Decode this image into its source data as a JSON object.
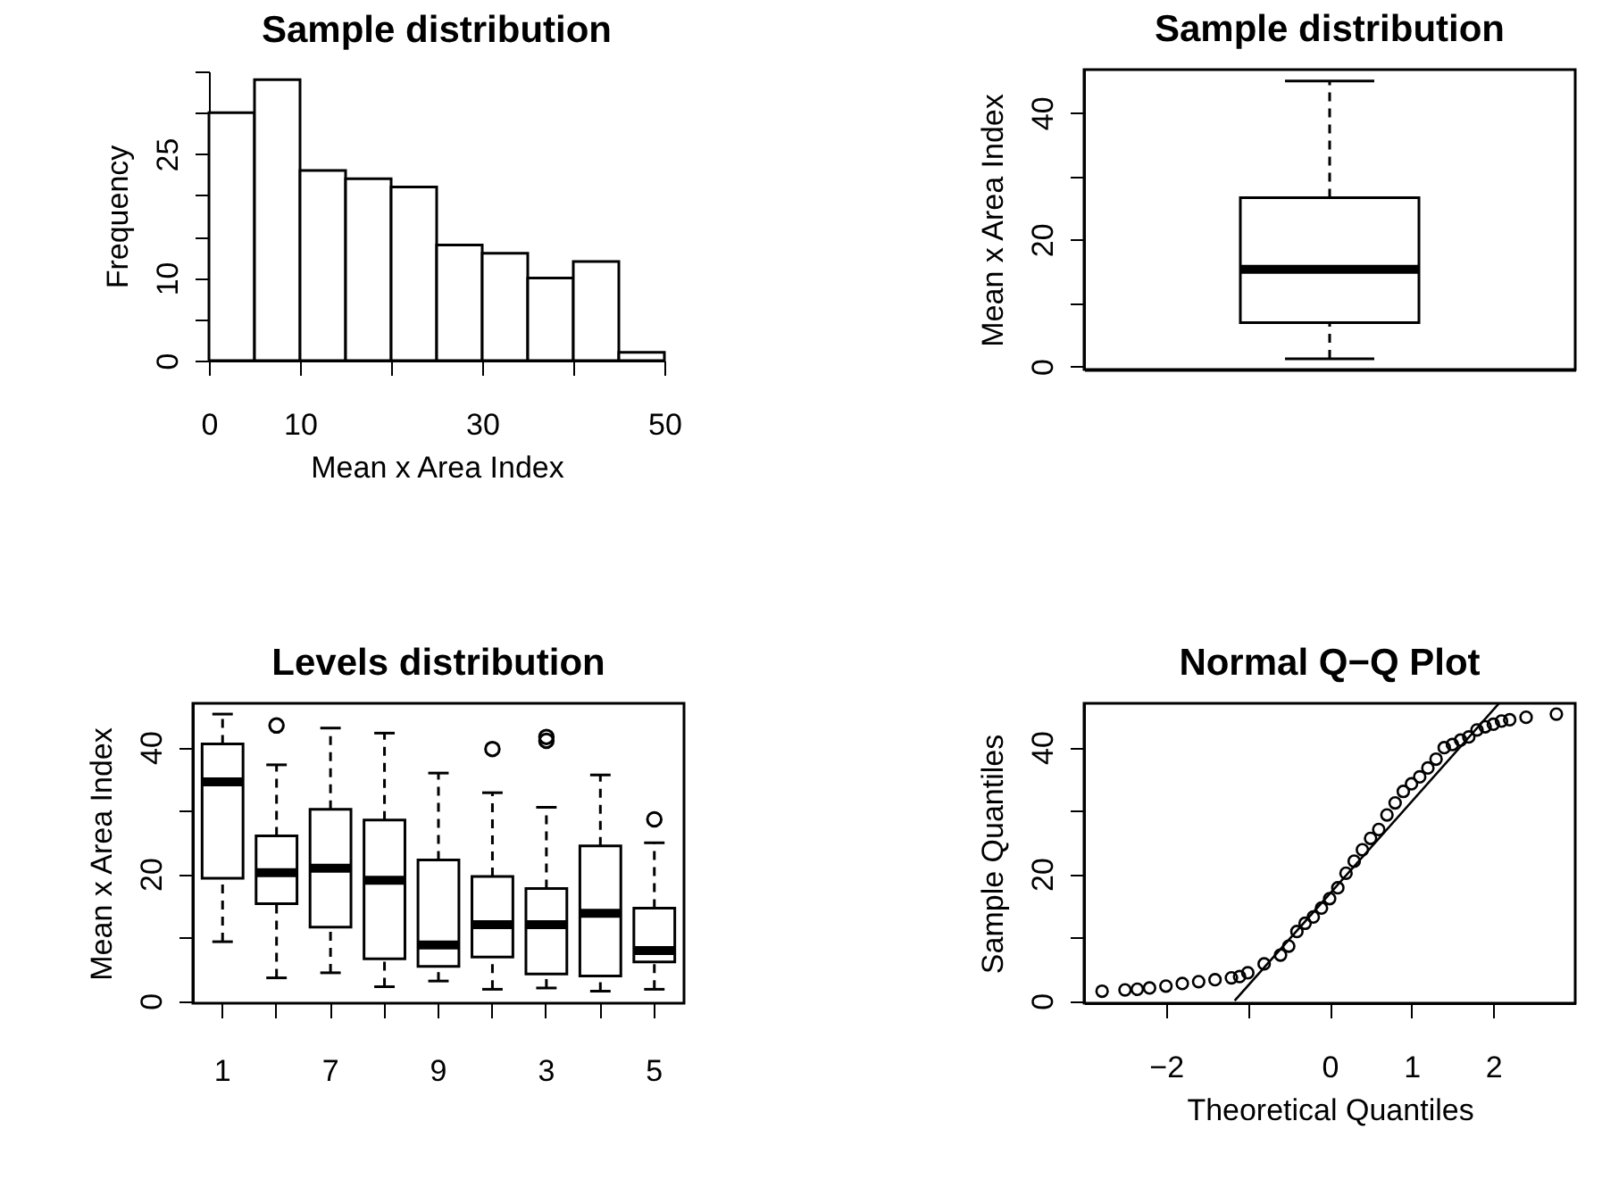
{
  "chart_data": [
    {
      "type": "histogram",
      "title": "Sample distribution",
      "xlabel": "Mean x Area Index",
      "ylabel": "Frequency",
      "color": "#ffffff",
      "bins": [
        0,
        5,
        10,
        15,
        20,
        25,
        30,
        35,
        40,
        45,
        50
      ],
      "values": [
        30,
        34,
        23,
        22,
        21,
        14,
        13,
        10,
        12,
        1
      ],
      "xlim": [
        0,
        50
      ],
      "xticks": [
        0,
        10,
        {
          "value": 20,
          "label": null
        },
        30,
        {
          "value": 40,
          "label": null
        },
        50
      ],
      "ylim": [
        0,
        35
      ],
      "yticks": [
        0,
        {
          "value": 5,
          "label": null
        },
        10,
        {
          "value": 15,
          "label": null
        },
        {
          "value": 20,
          "label": null
        },
        25,
        {
          "value": 30,
          "label": null
        },
        {
          "value": 35,
          "label": null
        }
      ]
    },
    {
      "type": "box",
      "title": "Sample distribution",
      "ylabel": "Mean x Area Index",
      "categories": [
        null
      ],
      "boxes": [
        {
          "low": 1.2,
          "q1": 6.9,
          "median": 15.3,
          "q3": 26.6,
          "high": 45.0
        }
      ],
      "ylim": [
        -0.5,
        46.8
      ],
      "yticks": [
        0,
        {
          "value": 10,
          "label": null
        },
        20,
        {
          "value": 30,
          "label": null
        },
        40
      ]
    },
    {
      "type": "box",
      "title": "Levels distribution",
      "ylabel": "Mean x Area Index",
      "categories": [
        "1",
        null,
        "7",
        null,
        "9",
        null,
        "3",
        null,
        "5"
      ],
      "boxes": [
        {
          "low": 9.3,
          "q1": 19.3,
          "median": 34.5,
          "q3": 40.5,
          "high": 45.2
        },
        {
          "low": 3.6,
          "q1": 15.3,
          "median": 20.2,
          "q3": 26.0,
          "high": 37.2,
          "outliers": [
            43.4
          ]
        },
        {
          "low": 4.4,
          "q1": 11.6,
          "median": 20.9,
          "q3": 30.2,
          "high": 43.0
        },
        {
          "low": 2.2,
          "q1": 6.6,
          "median": 19.0,
          "q3": 28.5,
          "high": 42.2
        },
        {
          "low": 3.1,
          "q1": 5.4,
          "median": 8.8,
          "q3": 22.2,
          "high": 35.9
        },
        {
          "low": 1.8,
          "q1": 6.9,
          "median": 12.0,
          "q3": 19.6,
          "high": 32.8,
          "outliers": [
            39.7
          ]
        },
        {
          "low": 2.0,
          "q1": 4.2,
          "median": 12.0,
          "q3": 17.7,
          "high": 30.5,
          "outliers": [
            41.0,
            41.6
          ]
        },
        {
          "low": 1.5,
          "q1": 3.9,
          "median": 13.8,
          "q3": 24.4,
          "high": 35.6
        },
        {
          "low": 1.8,
          "q1": 6.1,
          "median": 7.9,
          "q3": 14.6,
          "high": 24.9,
          "outliers": [
            28.6
          ]
        }
      ],
      "ylim": [
        -0.4,
        46.9
      ],
      "yticks": [
        0,
        {
          "value": 10,
          "label": null
        },
        20,
        {
          "value": 30,
          "label": null
        },
        40
      ]
    },
    {
      "type": "scatter",
      "title": "Normal Q−Q Plot",
      "xlabel": "Theoretical Quantiles",
      "ylabel": "Sample Quantiles",
      "series": [
        {
          "type": "scatter",
          "marker": "circle",
          "color": "#000000",
          "x": [
            -2.78,
            -2.5,
            -2.35,
            -2.2,
            -2.0,
            -1.8,
            -1.6,
            -1.4,
            -1.2,
            -1.1,
            -1.0,
            -0.8,
            -0.6,
            -0.5,
            -0.4,
            -0.3,
            -0.2,
            -0.1,
            0.0,
            0.1,
            0.2,
            0.3,
            0.4,
            0.5,
            0.6,
            0.7,
            0.8,
            0.9,
            1.0,
            1.1,
            1.2,
            1.3,
            1.4,
            1.5,
            1.6,
            1.7,
            1.8,
            1.9,
            2.0,
            2.1,
            2.2,
            2.4,
            2.77
          ],
          "values": [
            1.5,
            1.7,
            1.8,
            2.0,
            2.3,
            2.7,
            3.0,
            3.3,
            3.6,
            3.8,
            4.4,
            5.8,
            7.2,
            8.6,
            10.9,
            12.2,
            13.2,
            14.6,
            16.1,
            17.8,
            20.1,
            22.0,
            23.8,
            25.6,
            27.0,
            29.3,
            31.2,
            33.0,
            34.2,
            35.3,
            36.7,
            38.1,
            39.9,
            40.4,
            41.1,
            41.6,
            42.7,
            43.2,
            43.6,
            44.1,
            44.3,
            44.7,
            45.2
          ]
        },
        {
          "type": "line",
          "marker": "none",
          "color": "#000000",
          "x": [
            -1.16,
            2.07
          ],
          "values": [
            0,
            46.9
          ]
        }
      ],
      "xlim": [
        -3.0,
        3.0
      ],
      "xticks": [
        {
          "value": -2,
          "label": "−2"
        },
        {
          "value": -1,
          "label": null
        },
        0,
        1,
        2
      ],
      "ylim": [
        -0.4,
        46.9
      ],
      "yticks": [
        0,
        {
          "value": 10,
          "label": null
        },
        20,
        {
          "value": 30,
          "label": null
        },
        40
      ]
    }
  ]
}
